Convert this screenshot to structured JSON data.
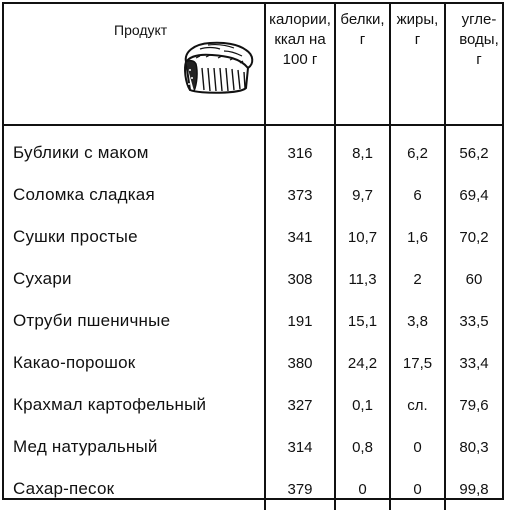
{
  "header": {
    "product": "Продукт",
    "calories": "калории,\nккал на\n100 г",
    "proteins": "белки,\nг",
    "fats": "жиры,\nг",
    "carbs": "угле-\nводы,\nг"
  },
  "bread_icon": "bread-loaf-icon",
  "rows": [
    {
      "name": "Бублики с маком",
      "kcal": "316",
      "protein": "8,1",
      "fat": "6,2",
      "carbs": "56,2"
    },
    {
      "name": "Соломка сладкая",
      "kcal": "373",
      "protein": "9,7",
      "fat": "6",
      "carbs": "69,4"
    },
    {
      "name": "Сушки простые",
      "kcal": "341",
      "protein": "10,7",
      "fat": "1,6",
      "carbs": "70,2"
    },
    {
      "name": "Сухари",
      "kcal": "308",
      "protein": "11,3",
      "fat": "2",
      "carbs": "60"
    },
    {
      "name": "Отруби пшеничные",
      "kcal": "191",
      "protein": "15,1",
      "fat": "3,8",
      "carbs": "33,5"
    },
    {
      "name": "Какао-порошок",
      "kcal": "380",
      "protein": "24,2",
      "fat": "17,5",
      "carbs": "33,4"
    },
    {
      "name": "Крахмал картофельный",
      "kcal": "327",
      "protein": "0,1",
      "fat": "сл.",
      "carbs": "79,6"
    },
    {
      "name": "Мед натуральный",
      "kcal": "314",
      "protein": "0,8",
      "fat": "0",
      "carbs": "80,3"
    },
    {
      "name": "Сахар-песок",
      "kcal": "379",
      "protein": "0",
      "fat": "0",
      "carbs": "99,8"
    }
  ]
}
